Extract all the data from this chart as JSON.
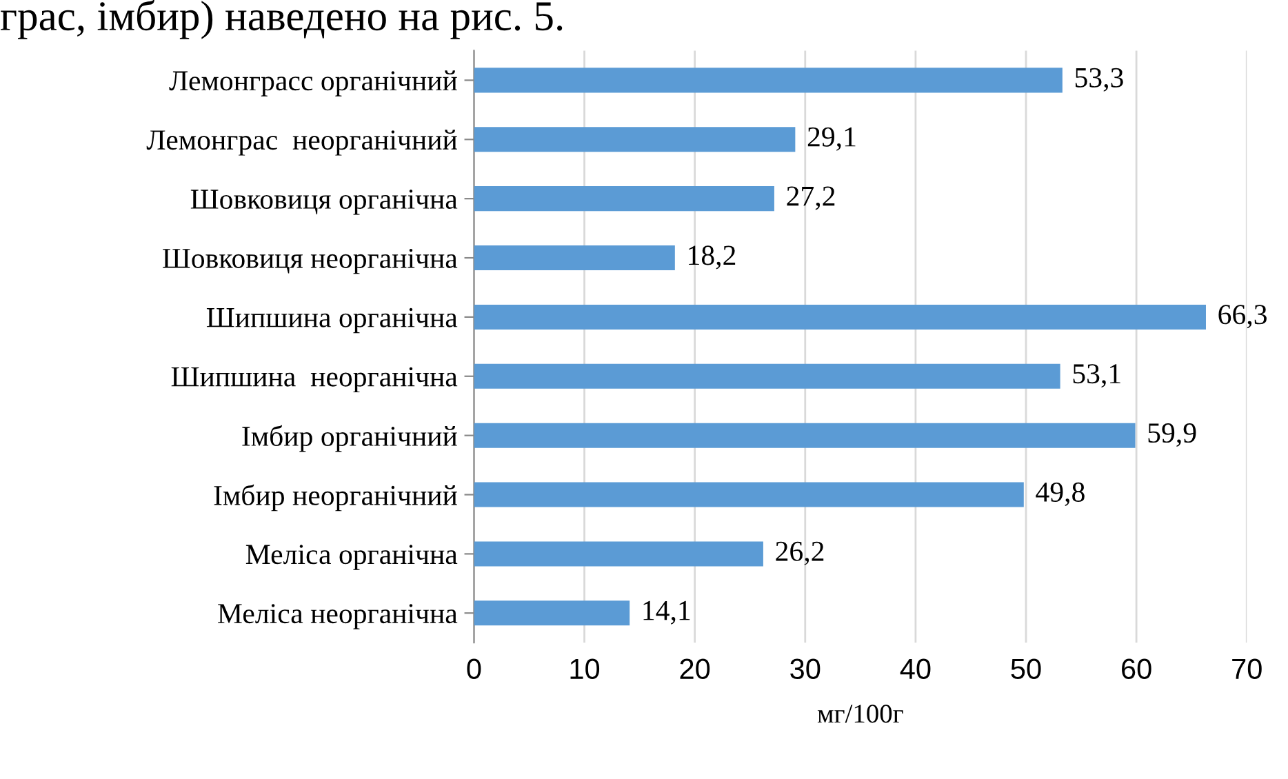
{
  "chart_data": {
    "type": "bar",
    "orientation": "horizontal",
    "xlabel": "мг/100г",
    "categories": [
      "Лемонграсс органічний",
      "Лемонграс  неорганічний",
      "Шовковиця органічна",
      "Шовковиця неорганічна",
      "Шипшина органічна",
      "Шипшина  неорганічна",
      "Імбир органічний",
      "Імбир неорганічний",
      "Меліса органічна",
      "Меліса неорганічна"
    ],
    "values": [
      53.3,
      29.1,
      27.2,
      18.2,
      66.3,
      53.1,
      59.9,
      49.8,
      26.2,
      14.1
    ],
    "value_labels": [
      "53,3",
      "29,1",
      "27,2",
      "18,2",
      "66,3",
      "53,1",
      "59,9",
      "49,8",
      "26,2",
      "14,1"
    ],
    "color": "#5b9bd5",
    "xlim": [
      0,
      70
    ],
    "xticks": [
      0,
      10,
      20,
      30,
      40,
      50,
      60,
      70
    ],
    "grid": "x",
    "annotations": [
      "грас, імбир) наведено на рис. 5."
    ]
  }
}
